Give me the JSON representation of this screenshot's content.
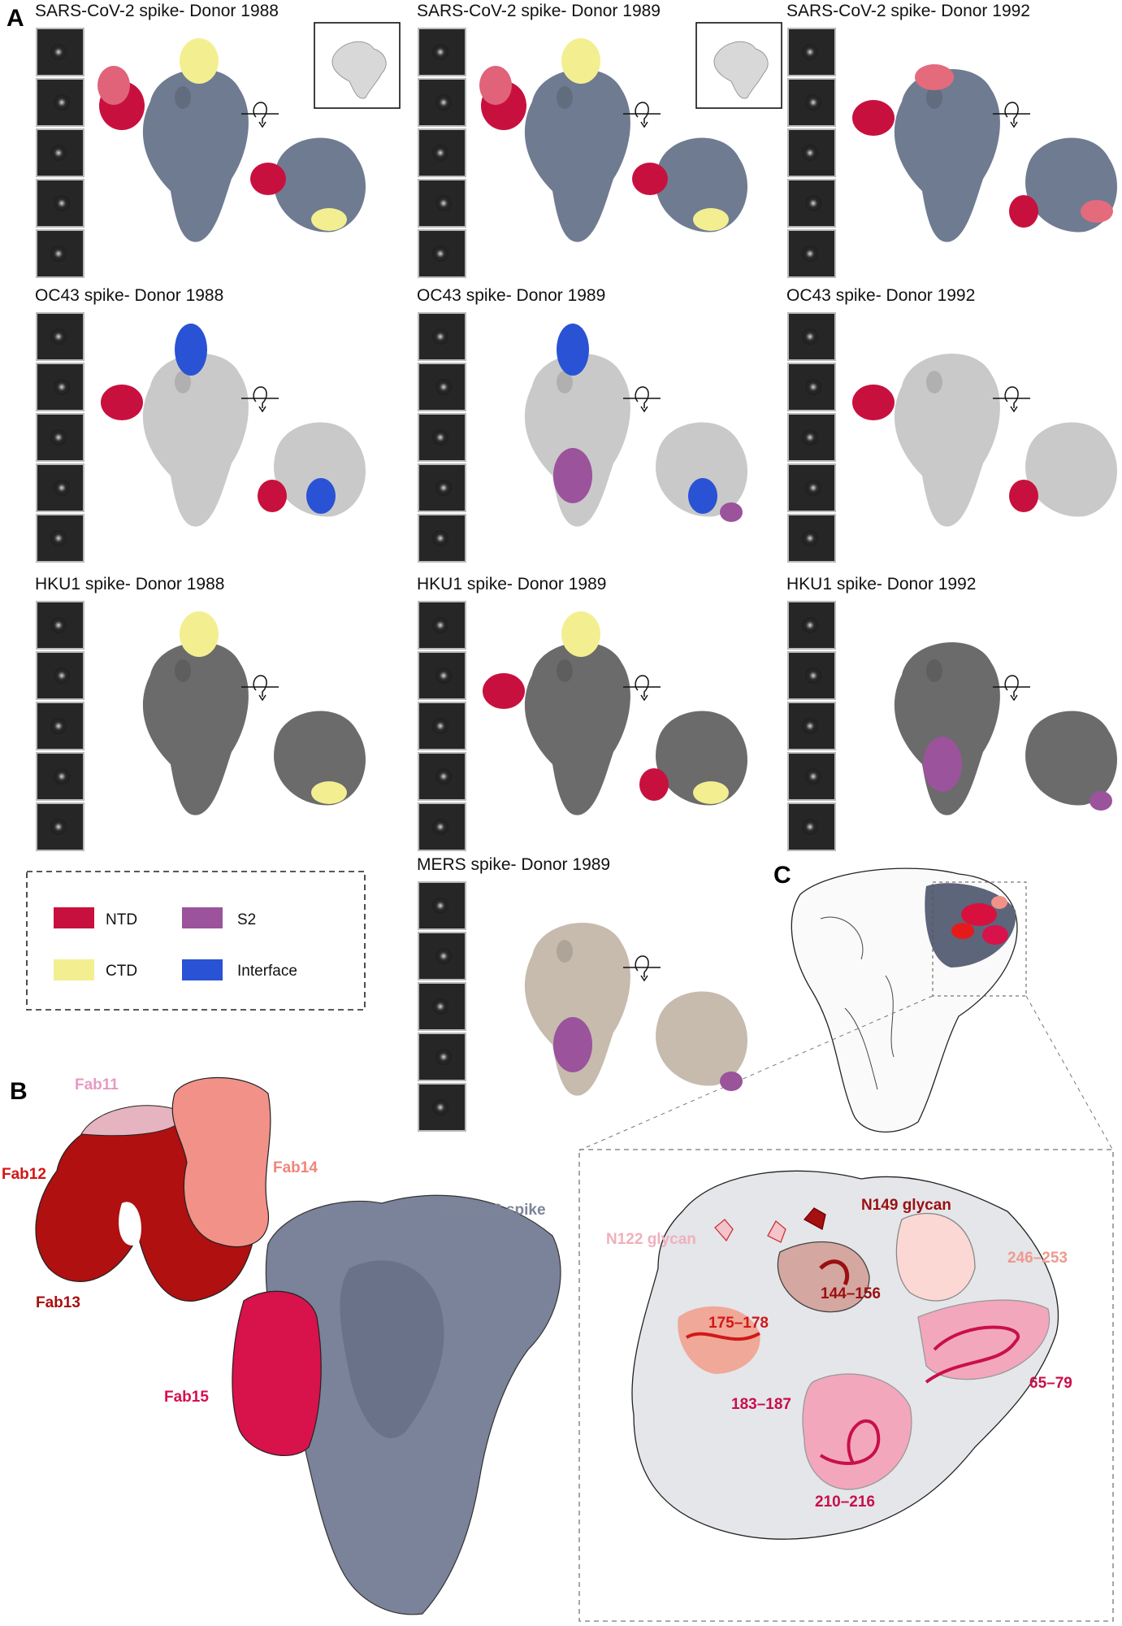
{
  "panel_letters": {
    "a": "A",
    "b": "B",
    "c": "C"
  },
  "panel_a": {
    "panels": [
      {
        "title": "SARS-CoV-2 spike- Donor 1988",
        "body": "#6f7b91",
        "epitopes": [
          "NTD-multi",
          "CTD"
        ],
        "inset": true
      },
      {
        "title": "SARS-CoV-2 spike- Donor 1989",
        "body": "#6f7b91",
        "epitopes": [
          "NTD-multi",
          "CTD"
        ],
        "inset": true
      },
      {
        "title": "SARS-CoV-2 spike- Donor  1992",
        "body": "#6f7b91",
        "epitopes": [
          "NTD",
          "NTD-light"
        ],
        "inset": false
      },
      {
        "title": "OC43 spike- Donor 1988",
        "body": "#c9c9c9",
        "epitopes": [
          "NTD",
          "Interface"
        ],
        "inset": false
      },
      {
        "title": "OC43 spike- Donor 1989",
        "body": "#c9c9c9",
        "epitopes": [
          "Interface",
          "S2"
        ],
        "inset": false
      },
      {
        "title": "OC43 spike- Donor 1992",
        "body": "#c9c9c9",
        "epitopes": [
          "NTD"
        ],
        "inset": false
      },
      {
        "title": "HKU1 spike- Donor 1988",
        "body": "#6b6b6b",
        "epitopes": [
          "CTD"
        ],
        "inset": false
      },
      {
        "title": "HKU1 spike- Donor 1989",
        "body": "#6b6b6b",
        "epitopes": [
          "NTD",
          "CTD"
        ],
        "inset": false
      },
      {
        "title": "HKU1 spike- Donor 1992",
        "body": "#6b6b6b",
        "epitopes": [
          "S2"
        ],
        "inset": false
      },
      {
        "title": "MERS spike- Donor 1989",
        "body": "#c6bbad",
        "epitopes": [
          "S2"
        ],
        "inset": false
      }
    ],
    "legend": [
      {
        "label": "NTD",
        "color": "#c8103e"
      },
      {
        "label": "S2",
        "color": "#9b539b"
      },
      {
        "label": "CTD",
        "color": "#f3ef91"
      },
      {
        "label": "Interface",
        "color": "#2a52d4"
      }
    ]
  },
  "panel_b": {
    "labels": [
      {
        "text": "Fab11",
        "color": "#e79ac2"
      },
      {
        "text": "Fab12",
        "color": "#d41515"
      },
      {
        "text": "Fab13",
        "color": "#a80f0f"
      },
      {
        "text": "Fab14",
        "color": "#f0857a"
      },
      {
        "text": "Fab15",
        "color": "#d60f4f"
      },
      {
        "text": "SARS-2 spike",
        "color": "#7d8499"
      }
    ]
  },
  "panel_c": {
    "labels": [
      {
        "text": "N149 glycan",
        "color": "#9a1010"
      },
      {
        "text": "N122 glycan",
        "color": "#f0b0bd"
      },
      {
        "text": "246–253",
        "color": "#f09a8e"
      },
      {
        "text": "144–156",
        "color": "#9a1010"
      },
      {
        "text": "175–178",
        "color": "#d01818"
      },
      {
        "text": "65–79",
        "color": "#c8104a"
      },
      {
        "text": "183–187",
        "color": "#c8104a"
      },
      {
        "text": "210–216",
        "color": "#c8104a"
      }
    ]
  }
}
